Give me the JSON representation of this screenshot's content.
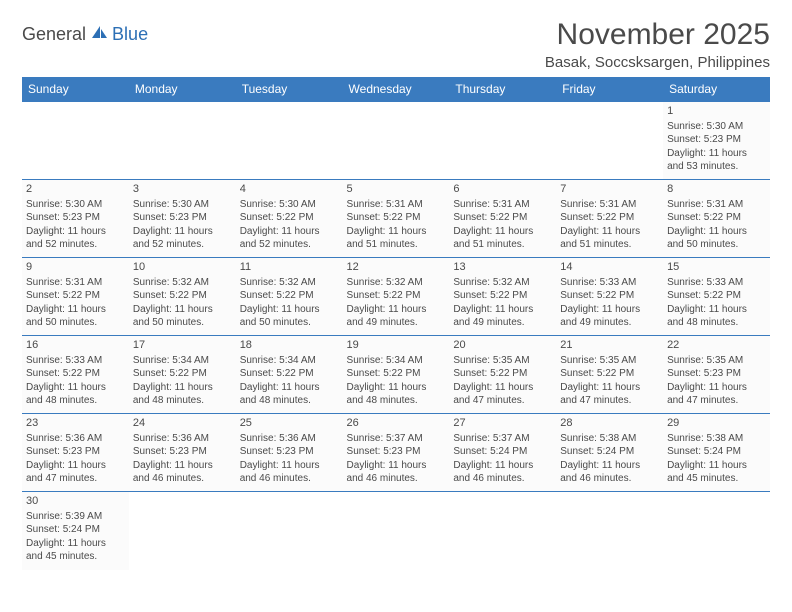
{
  "logo": {
    "text1": "General",
    "text2": "Blue"
  },
  "title": "November 2025",
  "location": "Basak, Soccsksargen, Philippines",
  "styling": {
    "header_bg": "#3a7bbf",
    "header_text": "#ffffff",
    "border_color": "#3a7bbf",
    "body_text": "#4a4a4a",
    "cell_bg": "#fbfbfb",
    "page_bg": "#ffffff",
    "title_fontsize": 30,
    "location_fontsize": 15,
    "dayheader_fontsize": 12,
    "cell_fontsize": 10
  },
  "type": "table",
  "columns": [
    "Sunday",
    "Monday",
    "Tuesday",
    "Wednesday",
    "Thursday",
    "Friday",
    "Saturday"
  ],
  "weeks": [
    [
      null,
      null,
      null,
      null,
      null,
      null,
      {
        "n": "1",
        "sunrise": "Sunrise: 5:30 AM",
        "sunset": "Sunset: 5:23 PM",
        "day": "Daylight: 11 hours and 53 minutes."
      }
    ],
    [
      {
        "n": "2",
        "sunrise": "Sunrise: 5:30 AM",
        "sunset": "Sunset: 5:23 PM",
        "day": "Daylight: 11 hours and 52 minutes."
      },
      {
        "n": "3",
        "sunrise": "Sunrise: 5:30 AM",
        "sunset": "Sunset: 5:23 PM",
        "day": "Daylight: 11 hours and 52 minutes."
      },
      {
        "n": "4",
        "sunrise": "Sunrise: 5:30 AM",
        "sunset": "Sunset: 5:22 PM",
        "day": "Daylight: 11 hours and 52 minutes."
      },
      {
        "n": "5",
        "sunrise": "Sunrise: 5:31 AM",
        "sunset": "Sunset: 5:22 PM",
        "day": "Daylight: 11 hours and 51 minutes."
      },
      {
        "n": "6",
        "sunrise": "Sunrise: 5:31 AM",
        "sunset": "Sunset: 5:22 PM",
        "day": "Daylight: 11 hours and 51 minutes."
      },
      {
        "n": "7",
        "sunrise": "Sunrise: 5:31 AM",
        "sunset": "Sunset: 5:22 PM",
        "day": "Daylight: 11 hours and 51 minutes."
      },
      {
        "n": "8",
        "sunrise": "Sunrise: 5:31 AM",
        "sunset": "Sunset: 5:22 PM",
        "day": "Daylight: 11 hours and 50 minutes."
      }
    ],
    [
      {
        "n": "9",
        "sunrise": "Sunrise: 5:31 AM",
        "sunset": "Sunset: 5:22 PM",
        "day": "Daylight: 11 hours and 50 minutes."
      },
      {
        "n": "10",
        "sunrise": "Sunrise: 5:32 AM",
        "sunset": "Sunset: 5:22 PM",
        "day": "Daylight: 11 hours and 50 minutes."
      },
      {
        "n": "11",
        "sunrise": "Sunrise: 5:32 AM",
        "sunset": "Sunset: 5:22 PM",
        "day": "Daylight: 11 hours and 50 minutes."
      },
      {
        "n": "12",
        "sunrise": "Sunrise: 5:32 AM",
        "sunset": "Sunset: 5:22 PM",
        "day": "Daylight: 11 hours and 49 minutes."
      },
      {
        "n": "13",
        "sunrise": "Sunrise: 5:32 AM",
        "sunset": "Sunset: 5:22 PM",
        "day": "Daylight: 11 hours and 49 minutes."
      },
      {
        "n": "14",
        "sunrise": "Sunrise: 5:33 AM",
        "sunset": "Sunset: 5:22 PM",
        "day": "Daylight: 11 hours and 49 minutes."
      },
      {
        "n": "15",
        "sunrise": "Sunrise: 5:33 AM",
        "sunset": "Sunset: 5:22 PM",
        "day": "Daylight: 11 hours and 48 minutes."
      }
    ],
    [
      {
        "n": "16",
        "sunrise": "Sunrise: 5:33 AM",
        "sunset": "Sunset: 5:22 PM",
        "day": "Daylight: 11 hours and 48 minutes."
      },
      {
        "n": "17",
        "sunrise": "Sunrise: 5:34 AM",
        "sunset": "Sunset: 5:22 PM",
        "day": "Daylight: 11 hours and 48 minutes."
      },
      {
        "n": "18",
        "sunrise": "Sunrise: 5:34 AM",
        "sunset": "Sunset: 5:22 PM",
        "day": "Daylight: 11 hours and 48 minutes."
      },
      {
        "n": "19",
        "sunrise": "Sunrise: 5:34 AM",
        "sunset": "Sunset: 5:22 PM",
        "day": "Daylight: 11 hours and 48 minutes."
      },
      {
        "n": "20",
        "sunrise": "Sunrise: 5:35 AM",
        "sunset": "Sunset: 5:22 PM",
        "day": "Daylight: 11 hours and 47 minutes."
      },
      {
        "n": "21",
        "sunrise": "Sunrise: 5:35 AM",
        "sunset": "Sunset: 5:22 PM",
        "day": "Daylight: 11 hours and 47 minutes."
      },
      {
        "n": "22",
        "sunrise": "Sunrise: 5:35 AM",
        "sunset": "Sunset: 5:23 PM",
        "day": "Daylight: 11 hours and 47 minutes."
      }
    ],
    [
      {
        "n": "23",
        "sunrise": "Sunrise: 5:36 AM",
        "sunset": "Sunset: 5:23 PM",
        "day": "Daylight: 11 hours and 47 minutes."
      },
      {
        "n": "24",
        "sunrise": "Sunrise: 5:36 AM",
        "sunset": "Sunset: 5:23 PM",
        "day": "Daylight: 11 hours and 46 minutes."
      },
      {
        "n": "25",
        "sunrise": "Sunrise: 5:36 AM",
        "sunset": "Sunset: 5:23 PM",
        "day": "Daylight: 11 hours and 46 minutes."
      },
      {
        "n": "26",
        "sunrise": "Sunrise: 5:37 AM",
        "sunset": "Sunset: 5:23 PM",
        "day": "Daylight: 11 hours and 46 minutes."
      },
      {
        "n": "27",
        "sunrise": "Sunrise: 5:37 AM",
        "sunset": "Sunset: 5:24 PM",
        "day": "Daylight: 11 hours and 46 minutes."
      },
      {
        "n": "28",
        "sunrise": "Sunrise: 5:38 AM",
        "sunset": "Sunset: 5:24 PM",
        "day": "Daylight: 11 hours and 46 minutes."
      },
      {
        "n": "29",
        "sunrise": "Sunrise: 5:38 AM",
        "sunset": "Sunset: 5:24 PM",
        "day": "Daylight: 11 hours and 45 minutes."
      }
    ],
    [
      {
        "n": "30",
        "sunrise": "Sunrise: 5:39 AM",
        "sunset": "Sunset: 5:24 PM",
        "day": "Daylight: 11 hours and 45 minutes."
      },
      null,
      null,
      null,
      null,
      null,
      null
    ]
  ]
}
